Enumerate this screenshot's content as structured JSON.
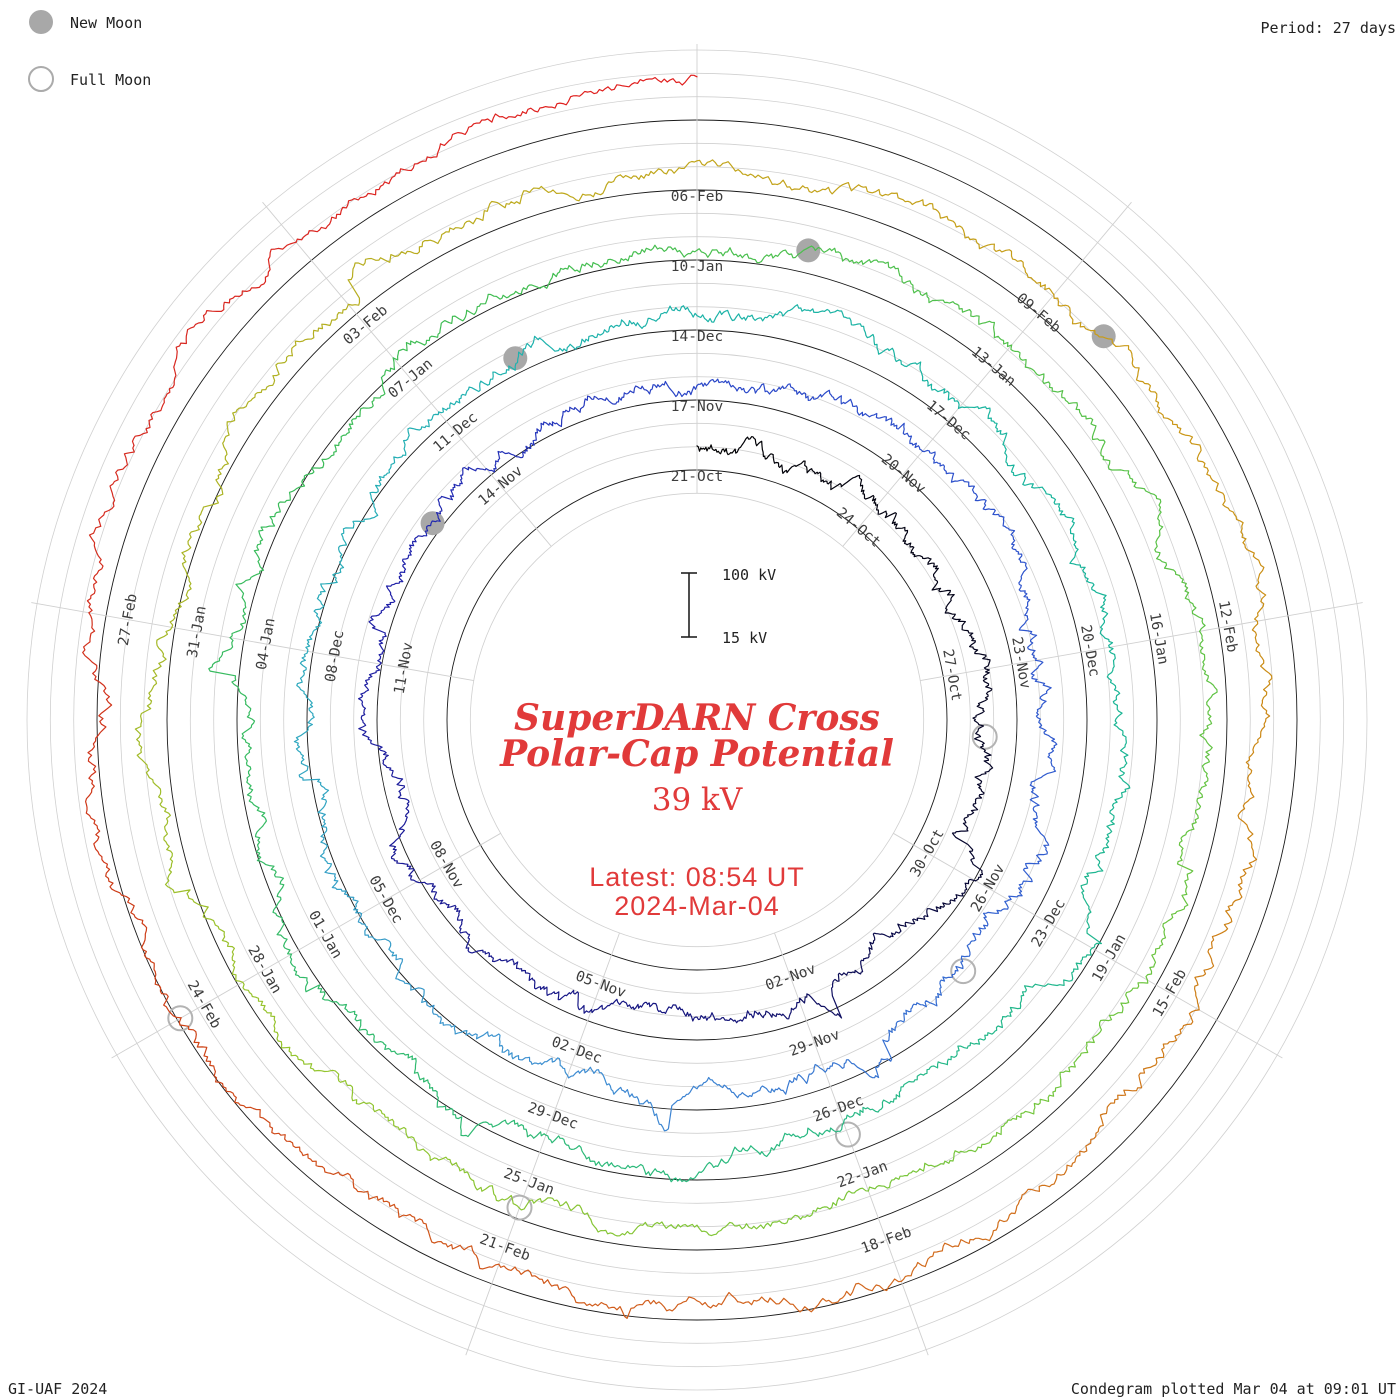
{
  "header": {
    "period_label": "Period: 27 days"
  },
  "legend": {
    "new_moon_label": "New Moon",
    "full_moon_label": "Full Moon"
  },
  "center": {
    "title_line1": "SuperDARN Cross",
    "title_line2": "Polar-Cap Potential",
    "value": "39 kV",
    "latest_line1": "Latest: 08:54 UT",
    "latest_line2": "2024-Mar-04"
  },
  "scale": {
    "max_label": "100 kV",
    "min_label": "15 kV"
  },
  "footer": {
    "left": "GI-UAF 2024",
    "right": "Condegram plotted Mar 04 at 09:01 UT"
  },
  "colors": {
    "annotation_red": "#e13a3a",
    "grid_gray": "#d0d0d0",
    "ring_black": "#1a1a1a",
    "moon_gray": "#a8a8a8",
    "label_gray": "#3d3d3d"
  },
  "chart_data": {
    "type": "line",
    "subtype": "condegram-polar-spiral",
    "description": "SuperDARN cross polar-cap potential traced as a spiral with a 27-day rotation period; radial offset above each turn's baseline circle encodes potential between 15 kV and 100 kV; trace colour progresses with time from black (late Oct) through navy, blue, teal, green, yellow-green, gold and orange to red (early Mar).",
    "period_days": 27,
    "total_days": 135,
    "start_label": "21-Oct",
    "latest_value_kv": 39,
    "latest_time_ut": "08:54 UT",
    "latest_date": "2024-Mar-04",
    "radial_scale": {
      "min_kv": 15,
      "max_kv": 100,
      "min_label": "15 kV",
      "max_label": "100 kV"
    },
    "date_labels": [
      {
        "t": 0,
        "label": "21-Oct"
      },
      {
        "t": 3,
        "label": "24-Oct"
      },
      {
        "t": 6,
        "label": "27-Oct"
      },
      {
        "t": 9,
        "label": "30-Oct"
      },
      {
        "t": 12,
        "label": "02-Nov"
      },
      {
        "t": 15,
        "label": "05-Nov"
      },
      {
        "t": 18,
        "label": "08-Nov"
      },
      {
        "t": 21,
        "label": "11-Nov"
      },
      {
        "t": 24,
        "label": "14-Nov"
      },
      {
        "t": 27,
        "label": "17-Nov"
      },
      {
        "t": 30,
        "label": "20-Nov"
      },
      {
        "t": 33,
        "label": "23-Nov"
      },
      {
        "t": 36,
        "label": "26-Nov"
      },
      {
        "t": 39,
        "label": "29-Nov"
      },
      {
        "t": 42,
        "label": "02-Dec"
      },
      {
        "t": 45,
        "label": "05-Dec"
      },
      {
        "t": 48,
        "label": "08-Dec"
      },
      {
        "t": 51,
        "label": "11-Dec"
      },
      {
        "t": 54,
        "label": "14-Dec"
      },
      {
        "t": 57,
        "label": "17-Dec"
      },
      {
        "t": 60,
        "label": "20-Dec"
      },
      {
        "t": 63,
        "label": "23-Dec"
      },
      {
        "t": 66,
        "label": "26-Dec"
      },
      {
        "t": 69,
        "label": "29-Dec"
      },
      {
        "t": 72,
        "label": "01-Jan"
      },
      {
        "t": 75,
        "label": "04-Jan"
      },
      {
        "t": 78,
        "label": "07-Jan"
      },
      {
        "t": 81,
        "label": "10-Jan"
      },
      {
        "t": 84,
        "label": "13-Jan"
      },
      {
        "t": 87,
        "label": "16-Jan"
      },
      {
        "t": 90,
        "label": "19-Jan"
      },
      {
        "t": 93,
        "label": "22-Jan"
      },
      {
        "t": 96,
        "label": "25-Jan"
      },
      {
        "t": 99,
        "label": "28-Jan"
      },
      {
        "t": 102,
        "label": "31-Jan"
      },
      {
        "t": 105,
        "label": "03-Feb"
      },
      {
        "t": 108,
        "label": "06-Feb"
      },
      {
        "t": 111,
        "label": "09-Feb"
      },
      {
        "t": 114,
        "label": "12-Feb"
      },
      {
        "t": 117,
        "label": "15-Feb"
      },
      {
        "t": 120,
        "label": "18-Feb"
      },
      {
        "t": 123,
        "label": "21-Feb"
      },
      {
        "t": 126,
        "label": "24-Feb"
      },
      {
        "t": 129,
        "label": "27-Feb"
      }
    ],
    "new_moons": [
      {
        "t": 23,
        "date_label": "13-Nov"
      },
      {
        "t": 52,
        "date_label": "12-Dec"
      },
      {
        "t": 82,
        "date_label": "11-Jan"
      },
      {
        "t": 111.5,
        "date_label": "09-Feb"
      }
    ],
    "full_moons": [
      {
        "t": 7,
        "date_label": "28-Oct"
      },
      {
        "t": 37,
        "date_label": "27-Nov"
      },
      {
        "t": 66,
        "date_label": "26-Dec"
      },
      {
        "t": 96,
        "date_label": "25-Jan"
      },
      {
        "t": 126,
        "date_label": "24-Feb"
      }
    ],
    "color_stops": [
      [
        0,
        "#000000"
      ],
      [
        9,
        "#05052e"
      ],
      [
        13,
        "#14147a"
      ],
      [
        22,
        "#1f1fa8"
      ],
      [
        27,
        "#2a46c8"
      ],
      [
        36,
        "#3260d0"
      ],
      [
        42,
        "#3f8ed2"
      ],
      [
        47,
        "#30a8c0"
      ],
      [
        52,
        "#1fb2ae"
      ],
      [
        59,
        "#17b49a"
      ],
      [
        65,
        "#25b888"
      ],
      [
        72,
        "#33ba68"
      ],
      [
        79,
        "#40bd52"
      ],
      [
        86,
        "#5ac247"
      ],
      [
        92,
        "#75c63c"
      ],
      [
        98,
        "#94c52f"
      ],
      [
        103,
        "#abb424"
      ],
      [
        107,
        "#bfa81c"
      ],
      [
        112,
        "#c99916"
      ],
      [
        116,
        "#cd8214"
      ],
      [
        120,
        "#d2691e"
      ],
      [
        124,
        "#d0521a"
      ],
      [
        127,
        "#cd3a16"
      ],
      [
        130,
        "#d62a20"
      ],
      [
        135,
        "#e11e1e"
      ]
    ]
  }
}
